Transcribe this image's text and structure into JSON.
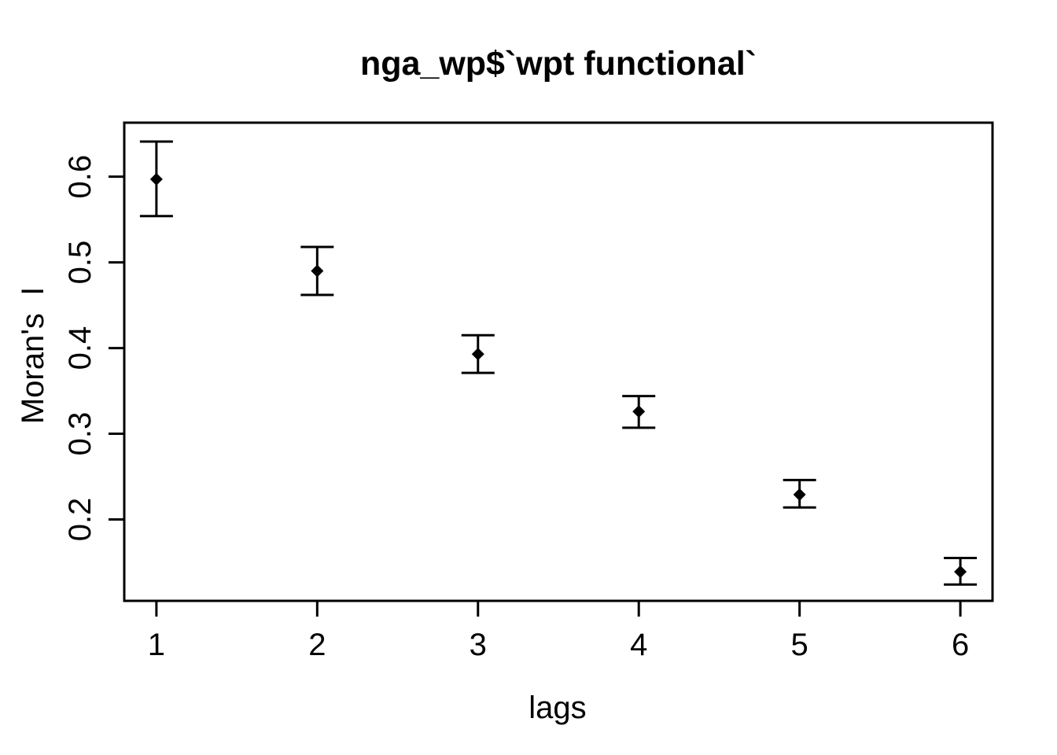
{
  "figure": {
    "background": "#ffffff",
    "foreground": "#000000"
  },
  "chart_data": {
    "type": "scatter",
    "subtype": "spatial-correlogram-with-error-bars",
    "title": "nga_wp$`wpt functional`",
    "xlabel": "lags",
    "ylabel": "Moran's  I",
    "x": [
      1,
      2,
      3,
      4,
      5,
      6
    ],
    "series": [
      {
        "name": "Moran's I estimate",
        "marker": "filled-diamond",
        "values": [
          0.597,
          0.49,
          0.393,
          0.326,
          0.229,
          0.139
        ],
        "upper": [
          0.641,
          0.518,
          0.415,
          0.344,
          0.246,
          0.155
        ],
        "lower": [
          0.554,
          0.462,
          0.371,
          0.307,
          0.214,
          0.124
        ]
      }
    ],
    "xticks": [
      1,
      2,
      3,
      4,
      5,
      6
    ],
    "xtick_labels": [
      "1",
      "2",
      "3",
      "4",
      "5",
      "6"
    ],
    "yticks": [
      0.2,
      0.3,
      0.4,
      0.5,
      0.6
    ],
    "ytick_labels": [
      "0.2",
      "0.3",
      "0.4",
      "0.5",
      "0.6"
    ],
    "xlim": [
      0.8,
      6.2
    ],
    "ylim": [
      0.105,
      0.663
    ],
    "grid": false,
    "legend_position": "none"
  }
}
